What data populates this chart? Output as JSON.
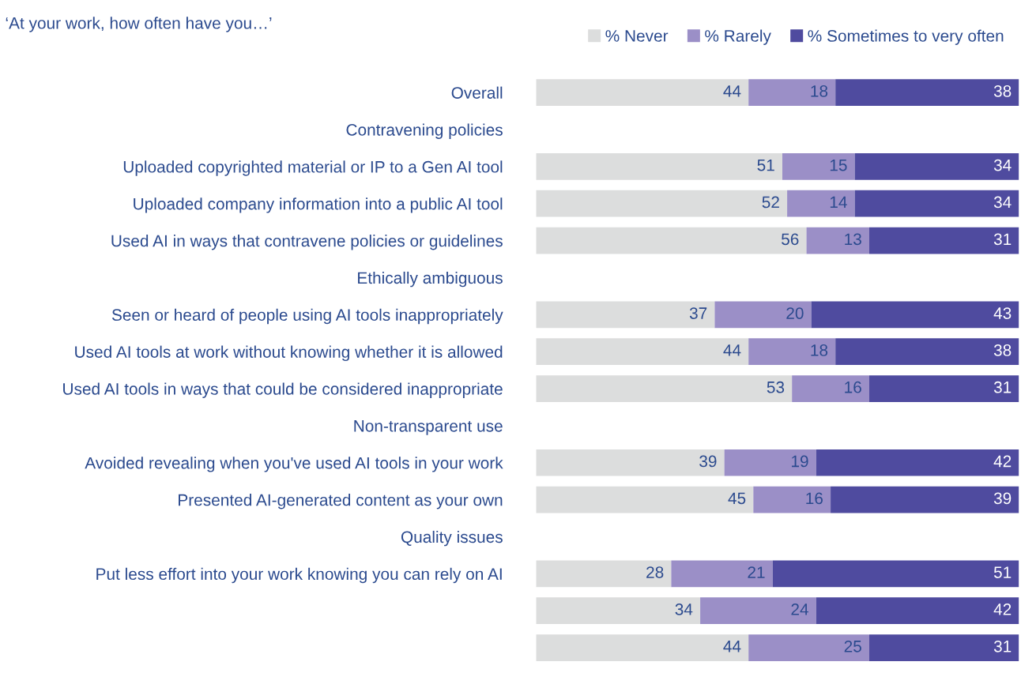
{
  "chart_data": {
    "type": "bar",
    "orientation": "horizontal",
    "stacked": true,
    "title": "‘At your work, how often have you…’",
    "categories": [
      "Overall",
      "Contravening policies",
      "Uploaded copyrighted material or IP to a Gen AI tool",
      "Uploaded company information into a public AI tool",
      "Used AI in ways that contravene policies or guidelines",
      "Ethically ambiguous",
      "Seen or heard of people using AI tools inappropriately",
      "Used AI tools at work without knowing whether it is allowed",
      "Used AI tools in ways that could be considered inappropriate",
      "Non-transparent use",
      "Avoided revealing when you've used AI tools in your work",
      "Presented AI-generated content as your own",
      "Quality issues",
      "Put less effort into your work knowing you can rely on AI",
      null,
      null
    ],
    "series": [
      {
        "name": "% Never",
        "color": "#dcdddd",
        "values": [
          44,
          null,
          51,
          52,
          56,
          null,
          37,
          44,
          53,
          null,
          39,
          45,
          null,
          28,
          34,
          44
        ]
      },
      {
        "name": "% Rarely",
        "color": "#9b8fc7",
        "values": [
          18,
          null,
          15,
          14,
          13,
          null,
          20,
          18,
          16,
          null,
          19,
          16,
          null,
          21,
          24,
          25
        ]
      },
      {
        "name": "% Sometimes to very often",
        "color": "#4f4b9f",
        "values": [
          38,
          null,
          34,
          34,
          31,
          null,
          43,
          38,
          31,
          null,
          42,
          39,
          null,
          51,
          42,
          31
        ]
      }
    ],
    "xlim": [
      0,
      100
    ],
    "data_labels": true,
    "legend": "top right",
    "grid": false,
    "tick_labels": "y"
  }
}
